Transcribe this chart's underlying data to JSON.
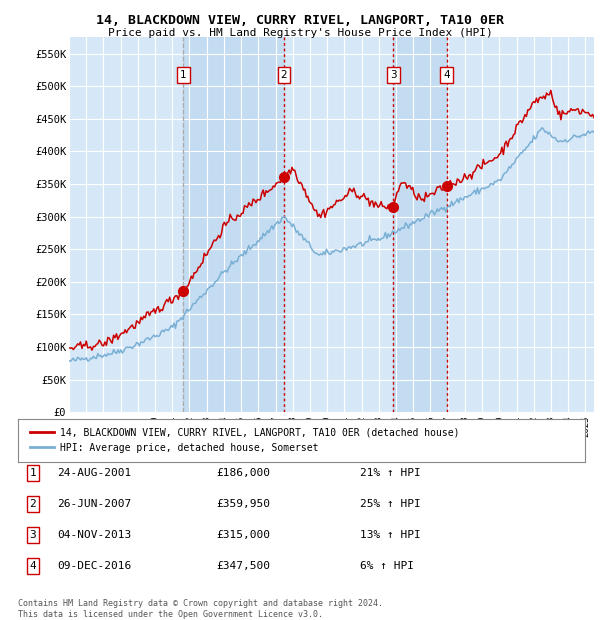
{
  "title": "14, BLACKDOWN VIEW, CURRY RIVEL, LANGPORT, TA10 0ER",
  "subtitle": "Price paid vs. HM Land Registry's House Price Index (HPI)",
  "ylim": [
    0,
    575000
  ],
  "yticks": [
    0,
    50000,
    100000,
    150000,
    200000,
    250000,
    300000,
    350000,
    400000,
    450000,
    500000,
    550000
  ],
  "ytick_labels": [
    "£0",
    "£50K",
    "£100K",
    "£150K",
    "£200K",
    "£250K",
    "£300K",
    "£350K",
    "£400K",
    "£450K",
    "£500K",
    "£550K"
  ],
  "background_color": "#ffffff",
  "plot_bg_color": "#d6e8f7",
  "grid_color": "#ffffff",
  "sale_dates_num": [
    2001.647,
    2007.484,
    2013.84,
    2016.94
  ],
  "sale_prices": [
    186000,
    359950,
    315000,
    347500
  ],
  "sale_labels": [
    "1",
    "2",
    "3",
    "4"
  ],
  "legend_property_label": "14, BLACKDOWN VIEW, CURRY RIVEL, LANGPORT, TA10 0ER (detached house)",
  "legend_hpi_label": "HPI: Average price, detached house, Somerset",
  "table_entries": [
    {
      "num": "1",
      "date": "24-AUG-2001",
      "price": "£186,000",
      "change": "21% ↑ HPI"
    },
    {
      "num": "2",
      "date": "26-JUN-2007",
      "price": "£359,950",
      "change": "25% ↑ HPI"
    },
    {
      "num": "3",
      "date": "04-NOV-2013",
      "price": "£315,000",
      "change": "13% ↑ HPI"
    },
    {
      "num": "4",
      "date": "09-DEC-2016",
      "price": "£347,500",
      "change": "6% ↑ HPI"
    }
  ],
  "footnote": "Contains HM Land Registry data © Crown copyright and database right 2024.\nThis data is licensed under the Open Government Licence v3.0.",
  "property_line_color": "#cc0000",
  "hpi_line_color": "#7aafd4",
  "sale_marker_color": "#cc0000",
  "vline_color_dashed": "#aaaaaa",
  "vline_color_dotted": "#cc0000",
  "shade_color": "#b8d4ed",
  "xlim_start": 1995.0,
  "xlim_end": 2025.5
}
